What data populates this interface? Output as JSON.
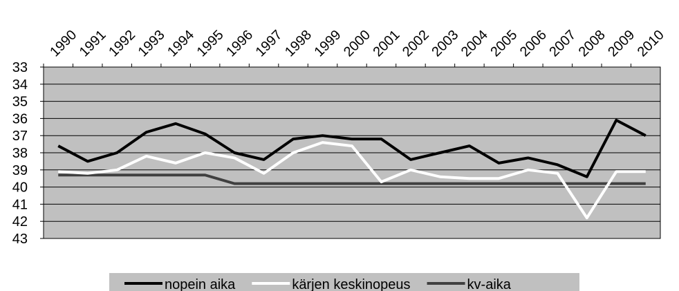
{
  "chart_data": {
    "type": "line",
    "categories": [
      "1990",
      "1991",
      "1992",
      "1993",
      "1994",
      "1995",
      "1996",
      "1997",
      "1998",
      "1999",
      "2000",
      "2001",
      "2002",
      "2003",
      "2004",
      "2005",
      "2006",
      "2007",
      "2008",
      "2009",
      "2010"
    ],
    "series": [
      {
        "name": "nopein aika",
        "color": "#000000",
        "values": [
          37.6,
          38.5,
          38.0,
          36.8,
          36.3,
          36.9,
          38.0,
          38.4,
          37.2,
          37.0,
          37.2,
          37.2,
          38.4,
          38.0,
          37.6,
          38.6,
          38.3,
          38.7,
          39.4,
          36.1,
          37.0
        ]
      },
      {
        "name": "kärjen keskinopeus",
        "color": "#ffffff",
        "values": [
          39.1,
          39.2,
          39.0,
          38.2,
          38.6,
          38.0,
          38.3,
          39.2,
          38.0,
          37.4,
          37.6,
          39.7,
          39.0,
          39.4,
          39.5,
          39.5,
          39.0,
          39.2,
          41.8,
          39.1,
          39.1
        ]
      },
      {
        "name": "kv-aika",
        "color": "#404040",
        "values": [
          39.3,
          39.3,
          39.3,
          39.3,
          39.3,
          39.3,
          39.8,
          39.8,
          39.8,
          39.8,
          39.8,
          39.8,
          39.8,
          39.8,
          39.8,
          39.8,
          39.8,
          39.8,
          39.8,
          39.8,
          39.8
        ]
      }
    ],
    "ylim": [
      33,
      43
    ],
    "y_inverted": true,
    "yticks": [
      33,
      34,
      35,
      36,
      37,
      38,
      39,
      40,
      41,
      42,
      43
    ],
    "grid": true,
    "legend": "bottom",
    "plot_background": "#c0c0c0"
  }
}
